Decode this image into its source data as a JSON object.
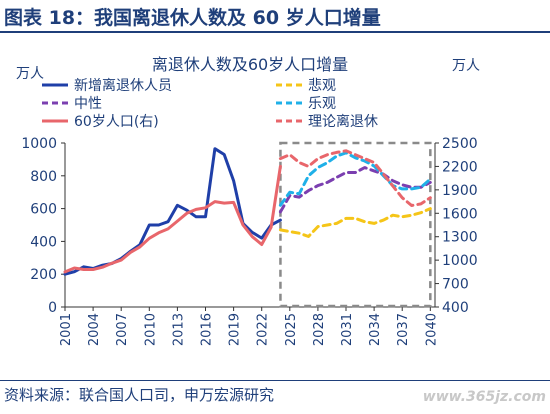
{
  "figure_title": "图表 18：我国离退休人数及 60 岁人口增量",
  "source": "资料来源：联合国人口司，申万宏源研究",
  "watermark": "www.365jz.com",
  "chart_data": {
    "type": "line",
    "title": "离退休人数及60岁人口增量",
    "left_unit": "万人",
    "right_unit": "万人",
    "left_ylim": [
      0,
      1000
    ],
    "left_yticks": [
      0,
      200,
      400,
      600,
      800,
      1000
    ],
    "right_ylim": [
      400,
      2500
    ],
    "right_yticks": [
      400,
      700,
      1000,
      1300,
      1600,
      1900,
      2200,
      2500
    ],
    "x_ticks": [
      "2001",
      "2004",
      "2007",
      "2010",
      "2013",
      "2016",
      "2019",
      "2022",
      "2025",
      "2028",
      "2031",
      "2034",
      "2037",
      "2040"
    ],
    "projection_box_x": [
      2024,
      2040
    ],
    "colors": {
      "new_retirees": "#1f3fa8",
      "neutral": "#7b3fb0",
      "pop60": "#e8666b",
      "pessimistic": "#f5c518",
      "optimistic": "#1fb0e8",
      "theory": "#e8666b",
      "box": "#8a8a8a"
    },
    "series": [
      {
        "name": "新增离退休人员",
        "axis": "left",
        "style": "solid",
        "x": [
          2001,
          2002,
          2003,
          2004,
          2005,
          2006,
          2007,
          2008,
          2009,
          2010,
          2011,
          2012,
          2013,
          2014,
          2015,
          2016,
          2017,
          2018,
          2019,
          2020,
          2021,
          2022,
          2023,
          2024
        ],
        "y": [
          200,
          215,
          245,
          235,
          255,
          265,
          295,
          340,
          380,
          500,
          500,
          520,
          620,
          590,
          550,
          550,
          965,
          930,
          770,
          510,
          455,
          420,
          500,
          530
        ]
      },
      {
        "name": "中性",
        "axis": "left",
        "style": "dashed",
        "x": [
          2024,
          2025,
          2026,
          2027,
          2028,
          2029,
          2030,
          2031,
          2032,
          2033,
          2034,
          2035,
          2036,
          2037,
          2038,
          2039,
          2040
        ],
        "y": [
          580,
          680,
          670,
          710,
          740,
          760,
          790,
          820,
          820,
          850,
          830,
          810,
          770,
          745,
          730,
          730,
          760
        ]
      },
      {
        "name": "60岁人口(右)",
        "axis": "right",
        "style": "solid",
        "x": [
          2001,
          2002,
          2003,
          2004,
          2005,
          2006,
          2007,
          2008,
          2009,
          2010,
          2011,
          2012,
          2013,
          2014,
          2015,
          2016,
          2017,
          2018,
          2019,
          2020,
          2021,
          2022,
          2023,
          2024
        ],
        "y": [
          850,
          900,
          880,
          880,
          910,
          960,
          1000,
          1100,
          1170,
          1280,
          1350,
          1400,
          1500,
          1600,
          1650,
          1670,
          1750,
          1730,
          1740,
          1450,
          1300,
          1200,
          1420,
          2200
        ]
      },
      {
        "name": "悲观",
        "axis": "left",
        "style": "dashed",
        "x": [
          2024,
          2025,
          2026,
          2027,
          2028,
          2029,
          2030,
          2031,
          2032,
          2033,
          2034,
          2035,
          2036,
          2037,
          2038,
          2039,
          2040
        ],
        "y": [
          470,
          460,
          450,
          430,
          490,
          500,
          510,
          540,
          540,
          520,
          510,
          530,
          560,
          550,
          560,
          575,
          600
        ]
      },
      {
        "name": "乐观",
        "axis": "left",
        "style": "dashed",
        "x": [
          2024,
          2025,
          2026,
          2027,
          2028,
          2029,
          2030,
          2031,
          2032,
          2033,
          2034,
          2035,
          2036,
          2037,
          2038,
          2039,
          2040
        ],
        "y": [
          620,
          700,
          690,
          800,
          850,
          880,
          920,
          940,
          910,
          890,
          860,
          800,
          740,
          720,
          720,
          730,
          780
        ]
      },
      {
        "name": "理论离退休",
        "axis": "right",
        "style": "dashed",
        "x": [
          2024,
          2025,
          2026,
          2027,
          2028,
          2029,
          2030,
          2031,
          2032,
          2033,
          2034,
          2035,
          2036,
          2037,
          2038,
          2039,
          2040
        ],
        "y": [
          2300,
          2350,
          2250,
          2200,
          2300,
          2350,
          2380,
          2400,
          2350,
          2300,
          2250,
          2100,
          1950,
          1800,
          1700,
          1720,
          1800
        ]
      }
    ]
  }
}
